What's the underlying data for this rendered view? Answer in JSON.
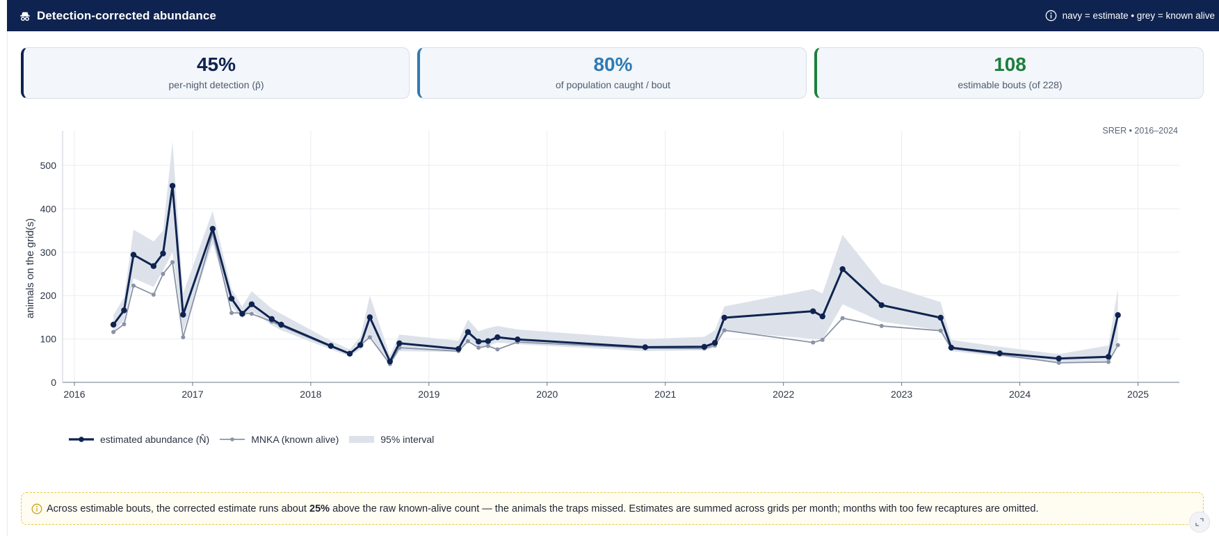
{
  "header": {
    "title": "Detection-corrected abundance",
    "legend_hint": "navy = estimate • grey = known alive",
    "title_icon": "spy-icon",
    "hint_icon": "info-icon"
  },
  "kpis": [
    {
      "value": "45%",
      "label": "per-night detection (p̂)",
      "color": "#0e2350"
    },
    {
      "value": "80%",
      "label": "of population caught / bout",
      "color": "#2f7bb3"
    },
    {
      "value": "108",
      "label": "estimable bouts (of 228)",
      "color": "#1c7f3c"
    }
  ],
  "chart_data": {
    "type": "line",
    "annotation": "SRER • 2016–2024",
    "ylabel": "animals on the grid(s)",
    "xlim": [
      2015.9,
      2025.35
    ],
    "ylim": [
      0,
      580
    ],
    "x_ticks": [
      "2016",
      "2017",
      "2018",
      "2019",
      "2020",
      "2021",
      "2022",
      "2023",
      "2024",
      "2025"
    ],
    "y_ticks": [
      "0",
      "100",
      "200",
      "300",
      "400",
      "500"
    ],
    "grid": true,
    "legend_position": "bottom-left",
    "x": [
      2016.33,
      2016.42,
      2016.5,
      2016.67,
      2016.75,
      2016.83,
      2016.92,
      2017.17,
      2017.33,
      2017.42,
      2017.5,
      2017.67,
      2017.75,
      2018.17,
      2018.33,
      2018.42,
      2018.5,
      2018.67,
      2018.75,
      2019.25,
      2019.33,
      2019.42,
      2019.5,
      2019.58,
      2019.75,
      2020.83,
      2021.33,
      2021.42,
      2021.5,
      2022.25,
      2022.33,
      2022.5,
      2022.83,
      2023.33,
      2023.42,
      2023.83,
      2024.33,
      2024.75,
      2024.83
    ],
    "series": [
      {
        "name": "estimated abundance (N̂)",
        "color": "#0e2350",
        "values": [
          133,
          166,
          294,
          268,
          297,
          453,
          156,
          354,
          193,
          158,
          180,
          146,
          133,
          84,
          66,
          86,
          150,
          48,
          90,
          77,
          116,
          94,
          95,
          104,
          99,
          81,
          82,
          91,
          149,
          164,
          152,
          261,
          178,
          149,
          80,
          67,
          55,
          59,
          155
        ],
        "lower": [
          118,
          143,
          240,
          220,
          258,
          300,
          118,
          320,
          175,
          148,
          165,
          132,
          120,
          76,
          60,
          76,
          110,
          40,
          72,
          70,
          100,
          82,
          84,
          92,
          88,
          72,
          74,
          80,
          118,
          100,
          98,
          180,
          140,
          120,
          72,
          60,
          45,
          48,
          95
        ],
        "upper": [
          155,
          196,
          352,
          325,
          350,
          555,
          205,
          395,
          215,
          175,
          210,
          170,
          158,
          96,
          76,
          105,
          200,
          62,
          110,
          96,
          145,
          118,
          125,
          130,
          122,
          100,
          105,
          120,
          175,
          215,
          205,
          340,
          228,
          185,
          98,
          82,
          65,
          85,
          215
        ]
      },
      {
        "name": "MNKA (known alive)",
        "color": "#8a93a6",
        "values": [
          116,
          134,
          223,
          202,
          250,
          277,
          104,
          344,
          160,
          160,
          158,
          140,
          130,
          82,
          66,
          86,
          104,
          42,
          80,
          72,
          95,
          80,
          84,
          76,
          93,
          79,
          78,
          85,
          120,
          92,
          98,
          148,
          130,
          119,
          78,
          64,
          45,
          47,
          86
        ]
      },
      {
        "name": "95% interval",
        "color": "#dde2ea"
      }
    ]
  },
  "legend": [
    {
      "label": "estimated abundance (N̂)"
    },
    {
      "label": "MNKA (known alive)"
    },
    {
      "label": "95% interval"
    }
  ],
  "note": {
    "icon": "info-icon",
    "before": "Across estimable bouts, the corrected estimate runs about",
    "highlight": "25%",
    "after": "above the raw known-alive count — the animals the traps missed. Estimates are summed across grids per month; months with too few recaptures are omitted."
  },
  "expand_icon": "expand-icon"
}
